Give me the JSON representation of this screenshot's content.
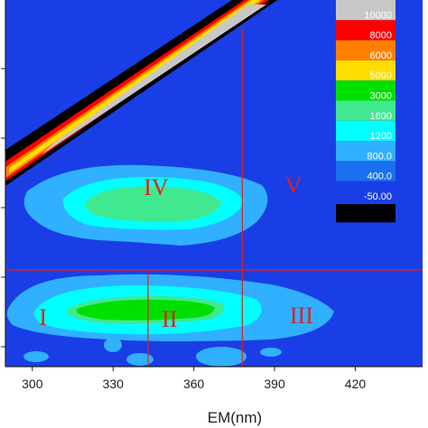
{
  "chart_data": {
    "type": "heatmap",
    "xlabel": "EM(nm)",
    "ylabel": "",
    "xlim": [
      290,
      445
    ],
    "x_ticks": [
      300,
      330,
      360,
      390,
      420
    ],
    "background_color": "#1a3ee6",
    "contour_levels": [
      {
        "label": "10000",
        "color": "#c8c8c8"
      },
      {
        "label": "8000",
        "color": "#ff0000"
      },
      {
        "label": "6000",
        "color": "#ff8000"
      },
      {
        "label": "5000",
        "color": "#ffdd00"
      },
      {
        "label": "3000",
        "color": "#00e000"
      },
      {
        "label": "1600",
        "color": "#40e890"
      },
      {
        "label": "1200",
        "color": "#00ffff"
      },
      {
        "label": "800.0",
        "color": "#30b0ff"
      },
      {
        "label": "400.0",
        "color": "#1a70f0"
      },
      {
        "label": "-50.00",
        "color": "#1a3ee6"
      },
      {
        "label": "",
        "color": "#000000"
      }
    ],
    "region_dividers": {
      "vertical_em": [
        343,
        378
      ],
      "horizontal_level_fraction": 0.632
    },
    "regions": [
      {
        "label": "I",
        "em": 304
      },
      {
        "label": "II",
        "em": 351
      },
      {
        "label": "III",
        "em": 400
      },
      {
        "label": "IV",
        "em": 346
      },
      {
        "label": "V",
        "em": 397
      }
    ],
    "grid": false,
    "legend": "right"
  }
}
